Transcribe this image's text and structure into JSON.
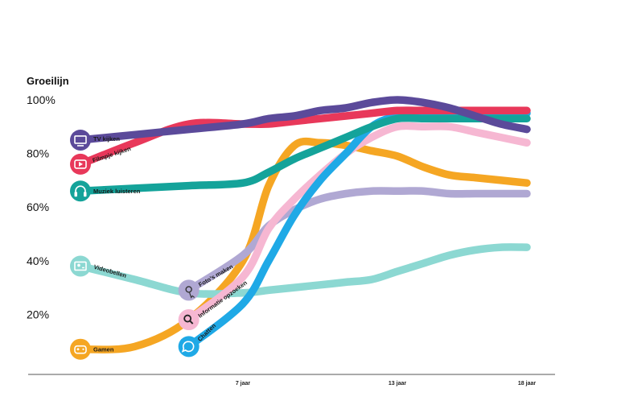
{
  "chart_data": {
    "type": "line",
    "title": "Groeilijn",
    "y_tick_labels": [
      "100%",
      "80%",
      "60%",
      "40%",
      "20%"
    ],
    "y_ticks": [
      100,
      80,
      60,
      40,
      20
    ],
    "ylim": [
      0,
      100
    ],
    "x_tick_labels": [
      "7 jaar",
      "13 jaar",
      "18 jaar"
    ],
    "x_ticks": [
      7,
      13,
      18
    ],
    "xlim": [
      4,
      19
    ],
    "grid": false,
    "legend": "labels-at-line-start",
    "series": [
      {
        "name": "Gamen",
        "color": "#F5A623",
        "icon": "gamepad-icon",
        "points": [
          [
            4,
            7
          ],
          [
            5,
            8
          ],
          [
            6,
            18
          ],
          [
            7,
            40
          ],
          [
            8,
            68
          ],
          [
            9,
            83
          ],
          [
            10,
            84
          ],
          [
            11,
            83
          ],
          [
            12,
            81
          ],
          [
            13,
            79
          ],
          [
            14,
            75
          ],
          [
            15,
            72
          ],
          [
            16,
            71
          ],
          [
            17,
            70
          ],
          [
            18,
            69
          ]
        ]
      },
      {
        "name": "Videobellen",
        "color": "#8CD8D2",
        "icon": "video-call-icon",
        "points": [
          [
            4,
            38
          ],
          [
            5,
            33
          ],
          [
            6,
            28
          ],
          [
            7,
            28
          ],
          [
            8,
            29
          ],
          [
            9,
            30
          ],
          [
            10,
            31
          ],
          [
            11,
            32
          ],
          [
            12,
            33
          ],
          [
            13,
            36
          ],
          [
            14,
            39
          ],
          [
            15,
            42
          ],
          [
            16,
            44
          ],
          [
            17,
            45
          ],
          [
            18,
            45
          ]
        ]
      },
      {
        "name": "Foto's maken",
        "color": "#B0A8D3",
        "icon": "photo-icon",
        "points": [
          [
            6,
            29
          ],
          [
            7,
            42
          ],
          [
            8,
            53
          ],
          [
            9,
            59
          ],
          [
            10,
            63
          ],
          [
            11,
            65
          ],
          [
            12,
            66
          ],
          [
            13,
            66
          ],
          [
            14,
            66
          ],
          [
            15,
            65
          ],
          [
            16,
            65
          ],
          [
            17,
            65
          ],
          [
            18,
            65
          ]
        ]
      },
      {
        "name": "Informatie opzoeken",
        "color": "#F6B7D2",
        "icon": "search-icon",
        "points": [
          [
            6,
            18
          ],
          [
            7,
            34
          ],
          [
            8,
            52
          ],
          [
            9,
            63
          ],
          [
            10,
            72
          ],
          [
            11,
            80
          ],
          [
            12,
            86
          ],
          [
            13,
            90
          ],
          [
            14,
            90
          ],
          [
            15,
            90
          ],
          [
            16,
            88
          ],
          [
            17,
            86
          ],
          [
            18,
            84
          ]
        ]
      },
      {
        "name": "Chatten",
        "color": "#1FA9E6",
        "icon": "chat-icon",
        "points": [
          [
            6,
            8
          ],
          [
            7,
            24
          ],
          [
            8,
            40
          ],
          [
            9,
            57
          ],
          [
            10,
            70
          ],
          [
            11,
            80
          ],
          [
            12,
            90
          ],
          [
            13,
            94
          ],
          [
            14,
            95
          ],
          [
            15,
            95
          ],
          [
            16,
            95
          ],
          [
            17,
            95
          ],
          [
            18,
            95
          ]
        ]
      },
      {
        "name": "Muziek luisteren",
        "color": "#14A39A",
        "icon": "headphones-icon",
        "points": [
          [
            4,
            66
          ],
          [
            5,
            67
          ],
          [
            6,
            68
          ],
          [
            7,
            69
          ],
          [
            8,
            73
          ],
          [
            9,
            78
          ],
          [
            10,
            82
          ],
          [
            11,
            86
          ],
          [
            12,
            90
          ],
          [
            13,
            93
          ],
          [
            14,
            93
          ],
          [
            15,
            93
          ],
          [
            16,
            93
          ],
          [
            17,
            93
          ],
          [
            18,
            93
          ]
        ]
      },
      {
        "name": "Filmpje kijken",
        "color": "#E8385A",
        "icon": "play-icon",
        "points": [
          [
            4,
            76
          ],
          [
            5,
            84
          ],
          [
            6,
            91
          ],
          [
            7,
            91
          ],
          [
            8,
            91
          ],
          [
            9,
            92
          ],
          [
            10,
            93
          ],
          [
            11,
            94
          ],
          [
            12,
            95
          ],
          [
            13,
            96
          ],
          [
            14,
            96
          ],
          [
            15,
            96
          ],
          [
            16,
            96
          ],
          [
            17,
            96
          ],
          [
            18,
            96
          ]
        ]
      },
      {
        "name": "TV kijken",
        "color": "#5B4A9A",
        "icon": "tv-icon",
        "points": [
          [
            4,
            85
          ],
          [
            5,
            87
          ],
          [
            6,
            89
          ],
          [
            7,
            91
          ],
          [
            8,
            93
          ],
          [
            9,
            94
          ],
          [
            10,
            96
          ],
          [
            11,
            97
          ],
          [
            12,
            99
          ],
          [
            13,
            100
          ],
          [
            14,
            99
          ],
          [
            15,
            97
          ],
          [
            16,
            94
          ],
          [
            17,
            91
          ],
          [
            18,
            89
          ]
        ]
      }
    ]
  }
}
